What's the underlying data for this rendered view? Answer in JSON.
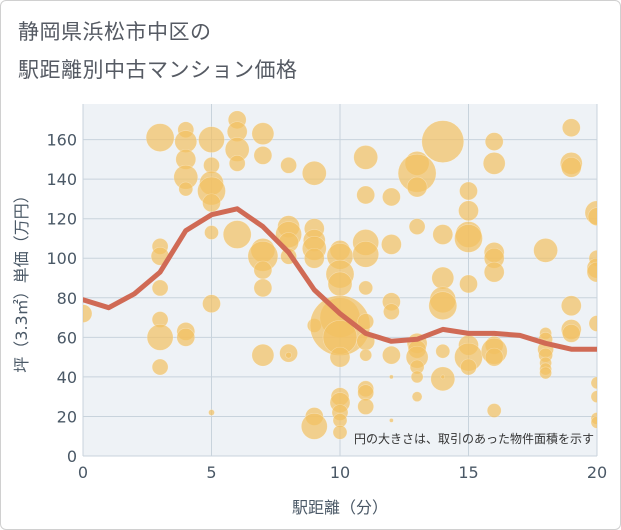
{
  "title_line1": "静岡県浜松市中区の",
  "title_line2": "駅距離別中古マンション価格",
  "colors": {
    "bubble_fill": "#f2c061",
    "bubble_opacity": 0.7,
    "trend_line": "#d06a55",
    "grid": "#c8d3dc",
    "plot_bg": "#eef2f6",
    "axis_text": "#4a5866"
  },
  "chart_data": {
    "type": "scatter",
    "xlabel": "駅距離（分）",
    "ylabel": "坪（3.3㎡）単価（万円）",
    "xlim": [
      0,
      20
    ],
    "ylim": [
      0,
      178
    ],
    "xticks": [
      0,
      5,
      10,
      15,
      20
    ],
    "yticks": [
      0,
      20,
      40,
      60,
      80,
      100,
      120,
      140,
      160
    ],
    "grid": true,
    "annotation": "円の大きさは、取引のあった物件面積を示す",
    "trend_line": {
      "x": [
        0,
        1,
        2,
        3,
        4,
        5,
        6,
        7,
        8,
        9,
        10,
        11,
        12,
        13,
        14,
        15,
        16,
        17,
        18,
        19,
        20
      ],
      "y": [
        79,
        75,
        82,
        93,
        114,
        122,
        125,
        116,
        103,
        84,
        72,
        62,
        58,
        59,
        64,
        62,
        62,
        61,
        57,
        54,
        54
      ]
    },
    "bubbles": [
      {
        "x": 0,
        "y": 72,
        "s": 9
      },
      {
        "x": 3,
        "y": 161,
        "s": 14
      },
      {
        "x": 3,
        "y": 106,
        "s": 8
      },
      {
        "x": 3,
        "y": 101,
        "s": 9
      },
      {
        "x": 3,
        "y": 85,
        "s": 8
      },
      {
        "x": 3,
        "y": 69,
        "s": 8
      },
      {
        "x": 3,
        "y": 60,
        "s": 13
      },
      {
        "x": 3,
        "y": 45,
        "s": 8
      },
      {
        "x": 4,
        "y": 165,
        "s": 8
      },
      {
        "x": 4,
        "y": 159,
        "s": 11
      },
      {
        "x": 4,
        "y": 150,
        "s": 10
      },
      {
        "x": 4,
        "y": 141,
        "s": 12
      },
      {
        "x": 4,
        "y": 135,
        "s": 7
      },
      {
        "x": 4,
        "y": 63,
        "s": 9
      },
      {
        "x": 4,
        "y": 60,
        "s": 9
      },
      {
        "x": 5,
        "y": 160,
        "s": 13
      },
      {
        "x": 5,
        "y": 147,
        "s": 8
      },
      {
        "x": 5,
        "y": 138,
        "s": 12
      },
      {
        "x": 5,
        "y": 134,
        "s": 14
      },
      {
        "x": 5,
        "y": 128,
        "s": 9
      },
      {
        "x": 5,
        "y": 113,
        "s": 7
      },
      {
        "x": 5,
        "y": 77,
        "s": 9
      },
      {
        "x": 5,
        "y": 22,
        "s": 3
      },
      {
        "x": 6,
        "y": 170,
        "s": 9
      },
      {
        "x": 6,
        "y": 164,
        "s": 10
      },
      {
        "x": 6,
        "y": 155,
        "s": 12
      },
      {
        "x": 6,
        "y": 148,
        "s": 8
      },
      {
        "x": 6,
        "y": 112,
        "s": 14
      },
      {
        "x": 7,
        "y": 163,
        "s": 11
      },
      {
        "x": 7,
        "y": 152,
        "s": 9
      },
      {
        "x": 7,
        "y": 104,
        "s": 12
      },
      {
        "x": 7,
        "y": 101,
        "s": 15
      },
      {
        "x": 7,
        "y": 94,
        "s": 9
      },
      {
        "x": 7,
        "y": 85,
        "s": 9
      },
      {
        "x": 7,
        "y": 51,
        "s": 11
      },
      {
        "x": 8,
        "y": 147,
        "s": 8
      },
      {
        "x": 8,
        "y": 116,
        "s": 11
      },
      {
        "x": 8,
        "y": 112,
        "s": 13
      },
      {
        "x": 8,
        "y": 108,
        "s": 10
      },
      {
        "x": 8,
        "y": 101,
        "s": 8
      },
      {
        "x": 8,
        "y": 52,
        "s": 9
      },
      {
        "x": 8,
        "y": 51,
        "s": 3
      },
      {
        "x": 9,
        "y": 143,
        "s": 12
      },
      {
        "x": 9,
        "y": 115,
        "s": 10
      },
      {
        "x": 9,
        "y": 109,
        "s": 11
      },
      {
        "x": 9,
        "y": 105,
        "s": 12
      },
      {
        "x": 9,
        "y": 100,
        "s": 10
      },
      {
        "x": 9,
        "y": 66,
        "s": 7
      },
      {
        "x": 9,
        "y": 20,
        "s": 9
      },
      {
        "x": 9,
        "y": 15,
        "s": 13
      },
      {
        "x": 10,
        "y": 104,
        "s": 10
      },
      {
        "x": 10,
        "y": 101,
        "s": 13
      },
      {
        "x": 10,
        "y": 92,
        "s": 14
      },
      {
        "x": 10,
        "y": 87,
        "s": 12
      },
      {
        "x": 10,
        "y": 70,
        "s": 20
      },
      {
        "x": 10,
        "y": 66,
        "s": 30
      },
      {
        "x": 10,
        "y": 60,
        "s": 17
      },
      {
        "x": 10,
        "y": 50,
        "s": 10
      },
      {
        "x": 10,
        "y": 30,
        "s": 9
      },
      {
        "x": 10,
        "y": 27,
        "s": 10
      },
      {
        "x": 10,
        "y": 22,
        "s": 8
      },
      {
        "x": 10,
        "y": 18,
        "s": 7
      },
      {
        "x": 10,
        "y": 12,
        "s": 7
      },
      {
        "x": 11,
        "y": 151,
        "s": 12
      },
      {
        "x": 11,
        "y": 132,
        "s": 9
      },
      {
        "x": 11,
        "y": 108,
        "s": 13
      },
      {
        "x": 11,
        "y": 102,
        "s": 13
      },
      {
        "x": 11,
        "y": 85,
        "s": 7
      },
      {
        "x": 11,
        "y": 68,
        "s": 8
      },
      {
        "x": 11,
        "y": 58,
        "s": 9
      },
      {
        "x": 11,
        "y": 51,
        "s": 6
      },
      {
        "x": 11,
        "y": 34,
        "s": 8
      },
      {
        "x": 11,
        "y": 32,
        "s": 8
      },
      {
        "x": 11,
        "y": 25,
        "s": 8
      },
      {
        "x": 12,
        "y": 131,
        "s": 9
      },
      {
        "x": 12,
        "y": 107,
        "s": 10
      },
      {
        "x": 12,
        "y": 78,
        "s": 9
      },
      {
        "x": 12,
        "y": 73,
        "s": 8
      },
      {
        "x": 12,
        "y": 51,
        "s": 9
      },
      {
        "x": 12,
        "y": 40,
        "s": 2
      },
      {
        "x": 12,
        "y": 18,
        "s": 2
      },
      {
        "x": 13,
        "y": 148,
        "s": 12
      },
      {
        "x": 13,
        "y": 143,
        "s": 19
      },
      {
        "x": 13,
        "y": 136,
        "s": 10
      },
      {
        "x": 13,
        "y": 116,
        "s": 8
      },
      {
        "x": 13,
        "y": 57,
        "s": 10
      },
      {
        "x": 13,
        "y": 54,
        "s": 9
      },
      {
        "x": 13,
        "y": 50,
        "s": 11
      },
      {
        "x": 13,
        "y": 45,
        "s": 7
      },
      {
        "x": 13,
        "y": 40,
        "s": 6
      },
      {
        "x": 13,
        "y": 30,
        "s": 5
      },
      {
        "x": 14,
        "y": 159,
        "s": 21
      },
      {
        "x": 14,
        "y": 112,
        "s": 10
      },
      {
        "x": 14,
        "y": 90,
        "s": 11
      },
      {
        "x": 14,
        "y": 79,
        "s": 13
      },
      {
        "x": 14,
        "y": 76,
        "s": 14
      },
      {
        "x": 14,
        "y": 53,
        "s": 7
      },
      {
        "x": 14,
        "y": 39,
        "s": 12
      },
      {
        "x": 14,
        "y": 40,
        "s": 2
      },
      {
        "x": 15,
        "y": 134,
        "s": 9
      },
      {
        "x": 15,
        "y": 124,
        "s": 10
      },
      {
        "x": 15,
        "y": 112,
        "s": 13
      },
      {
        "x": 15,
        "y": 110,
        "s": 14
      },
      {
        "x": 15,
        "y": 87,
        "s": 9
      },
      {
        "x": 15,
        "y": 56,
        "s": 10
      },
      {
        "x": 15,
        "y": 50,
        "s": 14
      },
      {
        "x": 15,
        "y": 45,
        "s": 8
      },
      {
        "x": 16,
        "y": 159,
        "s": 9
      },
      {
        "x": 16,
        "y": 148,
        "s": 11
      },
      {
        "x": 16,
        "y": 103,
        "s": 10
      },
      {
        "x": 16,
        "y": 100,
        "s": 10
      },
      {
        "x": 16,
        "y": 93,
        "s": 10
      },
      {
        "x": 16,
        "y": 56,
        "s": 9
      },
      {
        "x": 16,
        "y": 53,
        "s": 13
      },
      {
        "x": 16,
        "y": 50,
        "s": 9
      },
      {
        "x": 16,
        "y": 23,
        "s": 7
      },
      {
        "x": 18,
        "y": 104,
        "s": 12
      },
      {
        "x": 18,
        "y": 62,
        "s": 6
      },
      {
        "x": 18,
        "y": 59,
        "s": 7
      },
      {
        "x": 18,
        "y": 54,
        "s": 8
      },
      {
        "x": 18,
        "y": 51,
        "s": 7
      },
      {
        "x": 18,
        "y": 47,
        "s": 6
      },
      {
        "x": 18,
        "y": 44,
        "s": 6
      },
      {
        "x": 18,
        "y": 42,
        "s": 6
      },
      {
        "x": 19,
        "y": 166,
        "s": 9
      },
      {
        "x": 19,
        "y": 148,
        "s": 11
      },
      {
        "x": 19,
        "y": 146,
        "s": 10
      },
      {
        "x": 19,
        "y": 76,
        "s": 10
      },
      {
        "x": 19,
        "y": 64,
        "s": 10
      },
      {
        "x": 19,
        "y": 62,
        "s": 9
      },
      {
        "x": 20,
        "y": 123,
        "s": 12
      },
      {
        "x": 20,
        "y": 121,
        "s": 9
      },
      {
        "x": 20,
        "y": 100,
        "s": 8
      },
      {
        "x": 20,
        "y": 95,
        "s": 10
      },
      {
        "x": 20,
        "y": 93,
        "s": 10
      },
      {
        "x": 20,
        "y": 67,
        "s": 8
      },
      {
        "x": 20,
        "y": 37,
        "s": 6
      },
      {
        "x": 20,
        "y": 30,
        "s": 6
      },
      {
        "x": 20,
        "y": 19,
        "s": 6
      },
      {
        "x": 20,
        "y": 17,
        "s": 6
      }
    ]
  }
}
